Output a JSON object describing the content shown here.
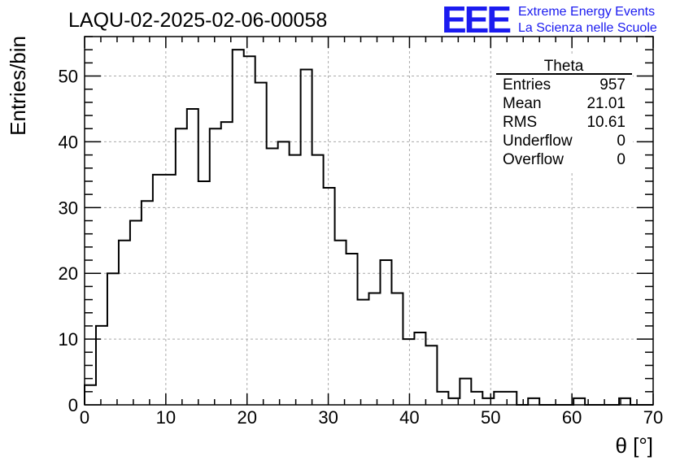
{
  "chart_data": {
    "type": "histogram",
    "title": "LAQU-02-2025-02-06-00058",
    "xlabel": "θ [°]",
    "ylabel": "Entries/bin",
    "xlim": [
      0,
      70
    ],
    "ylim": [
      0,
      56
    ],
    "grid": true,
    "bin_width": 1.4,
    "xticks": [
      0,
      10,
      20,
      30,
      40,
      50,
      60,
      70
    ],
    "yticks": [
      0,
      10,
      20,
      30,
      40,
      50
    ],
    "counts": [
      3,
      12,
      20,
      25,
      28,
      31,
      35,
      35,
      42,
      45,
      34,
      42,
      43,
      54,
      53,
      49,
      39,
      40,
      38,
      51,
      38,
      33,
      25,
      23,
      16,
      17,
      22,
      17,
      10,
      11,
      9,
      2,
      1,
      4,
      2,
      1,
      2,
      2,
      0,
      1,
      0,
      0,
      0,
      1,
      0,
      0,
      0,
      1,
      0,
      0
    ],
    "stats_box": {
      "title": "Theta",
      "rows": [
        {
          "label": "Entries",
          "value": "957"
        },
        {
          "label": "Mean",
          "value": "21.01"
        },
        {
          "label": "RMS",
          "value": "10.61"
        },
        {
          "label": "Underflow",
          "value": "0"
        },
        {
          "label": "Overflow",
          "value": "0"
        }
      ]
    }
  },
  "logo": {
    "mark": "EEE",
    "line1": "Extreme Energy Events",
    "line2": "La Scienza nelle Scuole"
  },
  "colors": {
    "logo": "#1b1bf0",
    "histogram": "#000000",
    "grid": "#aaaaaa"
  }
}
